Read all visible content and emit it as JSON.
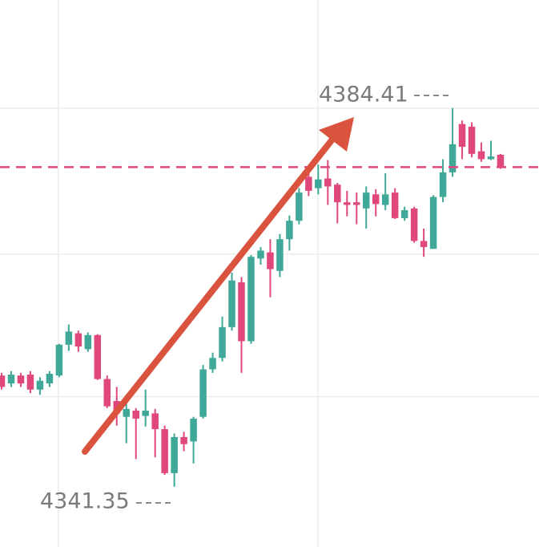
{
  "chart_data": {
    "type": "candlestick",
    "open": [
      4354.0,
      4353.1,
      4354.0,
      4354.1,
      4352.4,
      4353.1,
      4354.0,
      4357.5,
      4358.8,
      4357.0,
      4358.6,
      4353.6,
      4351.1,
      4349.3,
      4350.0,
      4349.4,
      4349.7,
      4347.9,
      4342.9,
      4347.0,
      4346.5,
      4349.3,
      4354.7,
      4356.0,
      4359.5,
      4364.6,
      4357.9,
      4367.3,
      4368.0,
      4365.9,
      4369.5,
      4371.6,
      4376.6,
      4375.3,
      4376.4,
      4375.7,
      4373.7,
      4373.7,
      4373.0,
      4374.6,
      4373.4,
      4374.8,
      4371.9,
      4373.0,
      4369.3,
      4368.4,
      4374.3,
      4377.1,
      4382.6,
      4382.3,
      4379.5,
      4378.6,
      4379.1
    ],
    "high": [
      4354.3,
      4354.5,
      4354.3,
      4354.5,
      4353.8,
      4354.5,
      4357.6,
      4359.8,
      4359.1,
      4358.9,
      4358.7,
      4354.0,
      4352.7,
      4351.1,
      4350.3,
      4352.4,
      4350.2,
      4348.3,
      4347.4,
      4347.6,
      4349.3,
      4355.2,
      4356.6,
      4360.7,
      4365.7,
      4365.2,
      4367.7,
      4368.6,
      4369.5,
      4370.1,
      4372.2,
      4375.3,
      4377.4,
      4378.0,
      4378.5,
      4375.9,
      4375.0,
      4374.8,
      4375.5,
      4375.2,
      4377.0,
      4375.3,
      4373.2,
      4373.2,
      4370.7,
      4374.5,
      4378.6,
      4384.41,
      4383.0,
      4382.8,
      4380.5,
      4380.7,
      4379.2
    ],
    "low": [
      4352.4,
      4352.7,
      4352.7,
      4352.0,
      4351.8,
      4352.7,
      4353.8,
      4356.8,
      4356.7,
      4356.7,
      4353.5,
      4350.3,
      4348.3,
      4346.3,
      4344.5,
      4348.2,
      4344.7,
      4342.7,
      4341.35,
      4345.4,
      4344.0,
      4349.1,
      4354.3,
      4355.6,
      4359.1,
      4354.3,
      4357.6,
      4366.6,
      4362.9,
      4365.2,
      4368.2,
      4371.2,
      4374.4,
      4374.6,
      4373.4,
      4371.3,
      4372.1,
      4371.2,
      4370.7,
      4372.1,
      4372.8,
      4371.8,
      4371.6,
      4369.1,
      4367.5,
      4368.4,
      4373.7,
      4376.6,
      4378.6,
      4378.8,
      4378.3,
      4378.5,
      4377.5
    ],
    "close": [
      4352.7,
      4354.1,
      4353.1,
      4352.4,
      4353.4,
      4354.2,
      4357.5,
      4359.0,
      4357.3,
      4358.6,
      4353.6,
      4350.5,
      4349.7,
      4350.2,
      4349.1,
      4350.0,
      4347.9,
      4342.9,
      4347.0,
      4346.2,
      4349.1,
      4354.7,
      4356.0,
      4359.5,
      4364.8,
      4357.9,
      4367.5,
      4368.2,
      4366.1,
      4369.5,
      4371.6,
      4374.8,
      4375.0,
      4376.3,
      4375.5,
      4373.7,
      4373.4,
      4373.4,
      4374.8,
      4373.5,
      4374.6,
      4371.9,
      4372.8,
      4369.3,
      4368.6,
      4374.3,
      4377.1,
      4380.3,
      4380.0,
      4379.2,
      4378.6,
      4378.9,
      4377.7
    ],
    "up_color": "#3fa898",
    "down_color": "#e0487c",
    "price_line": 4377.7,
    "price_line_color": "#e0487c",
    "ylim": [
      4334.5,
      4396.7
    ],
    "ygrid": [
      4384.4,
      4367.8,
      4351.6
    ],
    "grid": true
  }
}
